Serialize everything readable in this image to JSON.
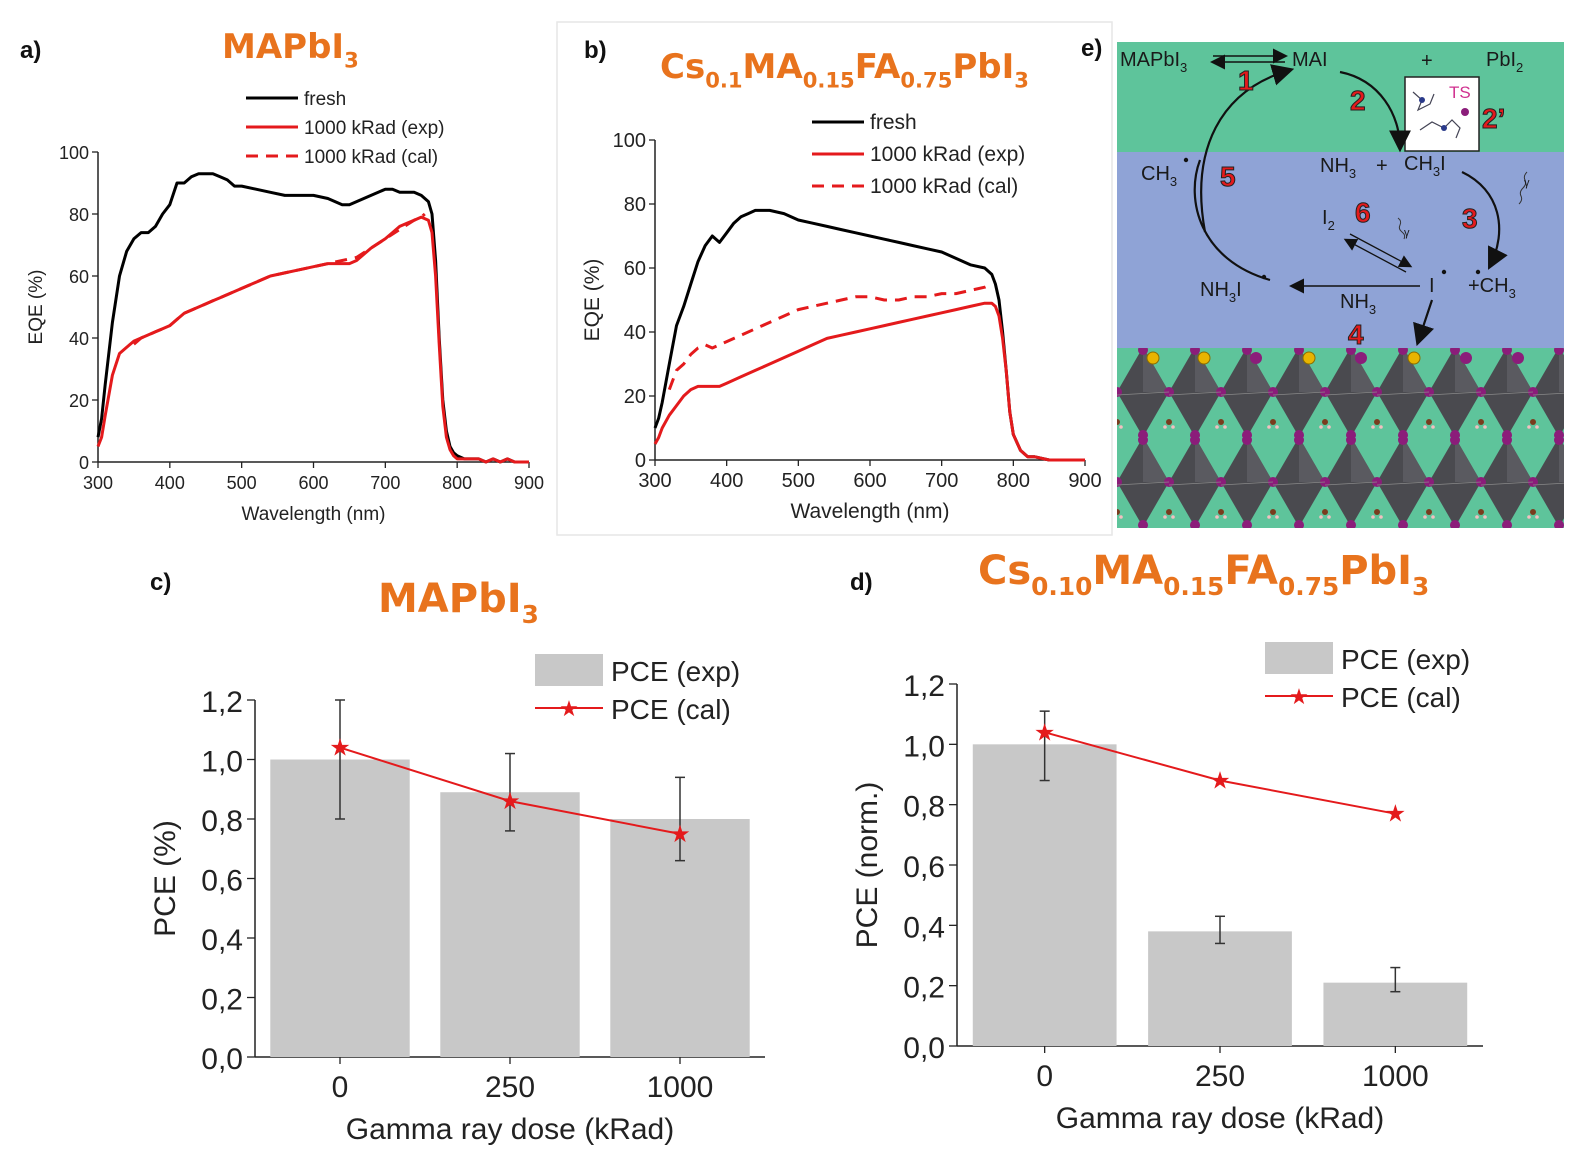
{
  "colors": {
    "title": "#e8731d",
    "fresh": "#000000",
    "irradiated": "#e41a1c",
    "bar": "#c8c8c8",
    "scheme_top": "#5ec49b",
    "scheme_mid": "#8fa3d6"
  },
  "chart_data": [
    {
      "panel": "a)",
      "type": "line",
      "title": {
        "base": "MAPbI",
        "sub": "3"
      },
      "xlabel": "Wavelength (nm)",
      "ylabel": "EQE (%)",
      "xlim": [
        300,
        900
      ],
      "ylim": [
        0,
        100
      ],
      "xticks": [
        "300",
        "400",
        "500",
        "600",
        "700",
        "800",
        "900"
      ],
      "yticks": [
        "0",
        "20",
        "40",
        "60",
        "80",
        "100"
      ],
      "legend_position": "top-right",
      "series": [
        {
          "name": "fresh",
          "style": "solid",
          "color": "#000000",
          "x": [
            300,
            305,
            310,
            320,
            330,
            340,
            350,
            360,
            370,
            380,
            390,
            400,
            410,
            420,
            430,
            440,
            450,
            460,
            470,
            480,
            490,
            500,
            520,
            540,
            560,
            580,
            600,
            620,
            640,
            650,
            660,
            680,
            700,
            710,
            720,
            730,
            740,
            750,
            760,
            765,
            770,
            775,
            780,
            785,
            790,
            795,
            800,
            810,
            820,
            830,
            840,
            850,
            860,
            870,
            880,
            900
          ],
          "y": [
            8,
            14,
            25,
            45,
            60,
            68,
            72,
            74,
            74,
            76,
            80,
            83,
            90,
            90,
            92,
            93,
            93,
            93,
            92,
            91,
            89,
            89,
            88,
            87,
            86,
            86,
            86,
            85,
            83,
            83,
            84,
            86,
            88,
            88,
            87,
            87,
            87,
            86,
            84,
            80,
            65,
            40,
            20,
            10,
            5,
            3,
            2,
            1,
            1,
            1,
            0,
            1,
            0,
            1,
            0,
            0
          ]
        },
        {
          "name": "1000 kRad (exp)",
          "style": "solid",
          "color": "#e41a1c",
          "x": [
            300,
            305,
            310,
            320,
            330,
            340,
            350,
            360,
            370,
            380,
            390,
            400,
            410,
            420,
            430,
            440,
            450,
            460,
            470,
            480,
            490,
            500,
            520,
            540,
            560,
            580,
            600,
            620,
            640,
            650,
            660,
            680,
            700,
            710,
            720,
            730,
            740,
            750,
            760,
            765,
            770,
            775,
            780,
            785,
            790,
            795,
            800,
            810,
            820,
            830,
            840,
            850,
            860,
            870,
            880,
            900
          ],
          "y": [
            5,
            8,
            15,
            28,
            35,
            37,
            39,
            40,
            41,
            42,
            43,
            44,
            46,
            48,
            49,
            50,
            51,
            52,
            53,
            54,
            55,
            56,
            58,
            60,
            61,
            62,
            63,
            64,
            64,
            64,
            65,
            69,
            72,
            74,
            76,
            77,
            78,
            79,
            78,
            74,
            60,
            38,
            18,
            8,
            4,
            2,
            1,
            1,
            1,
            1,
            0,
            1,
            0,
            1,
            0,
            0
          ]
        },
        {
          "name": "1000 kRad (cal)",
          "style": "dashed",
          "color": "#e41a1c",
          "x": [
            350,
            360,
            380,
            400,
            420,
            440,
            460,
            480,
            500,
            520,
            540,
            560,
            580,
            600,
            620,
            640,
            660,
            680,
            700,
            720,
            740,
            750,
            755
          ],
          "y": [
            38,
            40,
            42,
            44,
            48,
            50,
            52,
            54,
            56,
            58,
            60,
            61,
            62,
            63,
            64,
            65,
            66,
            69,
            72,
            75,
            78,
            79,
            80
          ]
        }
      ]
    },
    {
      "panel": "b)",
      "type": "line",
      "title": {
        "parts": [
          {
            "t": "Cs",
            "s": false
          },
          {
            "t": "0.1",
            "s": true
          },
          {
            "t": "MA",
            "s": false
          },
          {
            "t": "0.15",
            "s": true
          },
          {
            "t": "FA",
            "s": false
          },
          {
            "t": "0.75",
            "s": true
          },
          {
            "t": "PbI",
            "s": false
          },
          {
            "t": "3",
            "s": true
          }
        ]
      },
      "xlabel": "Wavelength (nm)",
      "ylabel": "EQE (%)",
      "xlim": [
        300,
        900
      ],
      "ylim": [
        0,
        100
      ],
      "xticks": [
        "300",
        "400",
        "500",
        "600",
        "700",
        "800",
        "900"
      ],
      "yticks": [
        "0",
        "20",
        "40",
        "60",
        "80",
        "100"
      ],
      "legend_position": "top-right",
      "series": [
        {
          "name": "fresh",
          "style": "solid",
          "color": "#000000",
          "x": [
            300,
            305,
            310,
            320,
            330,
            340,
            350,
            360,
            370,
            380,
            390,
            400,
            410,
            420,
            430,
            440,
            450,
            460,
            480,
            500,
            520,
            540,
            560,
            580,
            600,
            620,
            640,
            660,
            680,
            700,
            720,
            740,
            760,
            770,
            775,
            780,
            785,
            790,
            795,
            800,
            810,
            820,
            830,
            850,
            870,
            900
          ],
          "y": [
            10,
            13,
            18,
            30,
            42,
            48,
            55,
            62,
            67,
            70,
            68,
            71,
            74,
            76,
            77,
            78,
            78,
            78,
            77,
            75,
            74,
            73,
            72,
            71,
            70,
            69,
            68,
            67,
            66,
            65,
            63,
            61,
            60,
            58,
            55,
            50,
            40,
            28,
            15,
            8,
            3,
            1,
            1,
            0,
            0,
            0
          ]
        },
        {
          "name": "1000 kRad (exp)",
          "style": "solid",
          "color": "#e41a1c",
          "x": [
            300,
            305,
            310,
            320,
            330,
            340,
            350,
            360,
            370,
            380,
            390,
            400,
            420,
            440,
            460,
            480,
            500,
            520,
            540,
            560,
            580,
            600,
            620,
            640,
            660,
            680,
            700,
            720,
            740,
            760,
            770,
            775,
            780,
            785,
            790,
            795,
            800,
            810,
            820,
            830,
            850,
            870,
            900
          ],
          "y": [
            5,
            7,
            10,
            14,
            17,
            20,
            22,
            23,
            23,
            23,
            23,
            24,
            26,
            28,
            30,
            32,
            34,
            36,
            38,
            39,
            40,
            41,
            42,
            43,
            44,
            45,
            46,
            47,
            48,
            49,
            49,
            48,
            45,
            38,
            28,
            15,
            8,
            3,
            1,
            1,
            0,
            0,
            0
          ]
        },
        {
          "name": "1000 kRad (cal)",
          "style": "dashed",
          "color": "#e41a1c",
          "x": [
            320,
            330,
            340,
            350,
            360,
            370,
            380,
            390,
            400,
            420,
            440,
            460,
            480,
            500,
            520,
            540,
            560,
            580,
            600,
            620,
            640,
            660,
            680,
            700,
            720,
            740,
            760,
            770
          ],
          "y": [
            22,
            28,
            30,
            33,
            35,
            36,
            35,
            36,
            37,
            39,
            41,
            43,
            45,
            47,
            48,
            49,
            50,
            51,
            51,
            50,
            50,
            51,
            51,
            52,
            52,
            53,
            54,
            55
          ]
        }
      ]
    },
    {
      "panel": "c)",
      "type": "bar",
      "title": {
        "base": "MAPbI",
        "sub": "3"
      },
      "categories": [
        "0",
        "250",
        "1000"
      ],
      "xlabel": "Gamma ray dose (kRad)",
      "ylabel": "PCE (%)",
      "ylim": [
        0,
        1.2
      ],
      "yticks": [
        "0,0",
        "0,2",
        "0,4",
        "0,6",
        "0,8",
        "1,0",
        "1,2"
      ],
      "legend_position": "top-right",
      "series": [
        {
          "name": "PCE (exp)",
          "kind": "bar",
          "values": [
            1.0,
            0.89,
            0.8
          ],
          "err_low": [
            0.8,
            0.76,
            0.66
          ],
          "err_high": [
            1.2,
            1.02,
            0.94
          ]
        },
        {
          "name": "PCE (cal)",
          "kind": "line",
          "values": [
            1.04,
            0.86,
            0.75
          ]
        }
      ]
    },
    {
      "panel": "d)",
      "type": "bar",
      "title": {
        "parts": [
          {
            "t": "Cs",
            "s": false
          },
          {
            "t": "0.10",
            "s": true
          },
          {
            "t": "MA",
            "s": false
          },
          {
            "t": "0.15",
            "s": true
          },
          {
            "t": "FA",
            "s": false
          },
          {
            "t": "0.75",
            "s": true
          },
          {
            "t": "PbI",
            "s": false
          },
          {
            "t": "3",
            "s": true
          }
        ]
      },
      "categories": [
        "0",
        "250",
        "1000"
      ],
      "xlabel": "Gamma ray dose (kRad)",
      "ylabel": "PCE (norm.)",
      "ylim": [
        0,
        1.2
      ],
      "yticks": [
        "0,0",
        "0,2",
        "0,4",
        "0,6",
        "0,8",
        "1,0",
        "1,2"
      ],
      "legend_position": "top-right",
      "series": [
        {
          "name": "PCE (exp)",
          "kind": "bar",
          "values": [
            1.0,
            0.38,
            0.21
          ],
          "err_low": [
            0.88,
            0.34,
            0.18
          ],
          "err_high": [
            1.11,
            0.43,
            0.26
          ]
        },
        {
          "name": "PCE (cal)",
          "kind": "line",
          "values": [
            1.04,
            0.88,
            0.77
          ]
        }
      ]
    }
  ],
  "scheme": {
    "panel": "e)",
    "top": {
      "MAPbI3": "MAPbI",
      "MAPbI3_sub": "3",
      "MAI": "MAI",
      "plus": "+",
      "PbI2": "PbI",
      "PbI2_sub": "2",
      "TS": "TS"
    },
    "mid": {
      "CH3_left": "CH",
      "CH3_left_sub": "3",
      "NH3": "NH",
      "NH3_sub": "3",
      "plus": "+",
      "CH3I": "CH",
      "CH3I_sub": "3",
      "CH3I_tail": "I",
      "I2": "I",
      "I2_sub": "2",
      "NH3I": "NH",
      "NH3I_sub": "3",
      "NH3I_tail": "I",
      "NH3_arrow": "NH",
      "NH3_arrow_sub": "3",
      "Irad": "I",
      "plusCH3": "+CH",
      "plusCH3_sub": "3",
      "gamma": "γ"
    },
    "steps": [
      "1",
      "2",
      "2’",
      "3",
      "4",
      "5",
      "6"
    ]
  }
}
